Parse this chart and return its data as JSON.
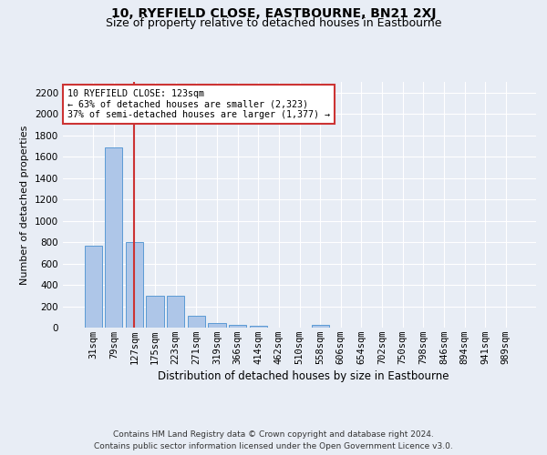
{
  "title": "10, RYEFIELD CLOSE, EASTBOURNE, BN21 2XJ",
  "subtitle": "Size of property relative to detached houses in Eastbourne",
  "xlabel": "Distribution of detached houses by size in Eastbourne",
  "ylabel": "Number of detached properties",
  "categories": [
    "31sqm",
    "79sqm",
    "127sqm",
    "175sqm",
    "223sqm",
    "271sqm",
    "319sqm",
    "366sqm",
    "414sqm",
    "462sqm",
    "510sqm",
    "558sqm",
    "606sqm",
    "654sqm",
    "702sqm",
    "750sqm",
    "798sqm",
    "846sqm",
    "894sqm",
    "941sqm",
    "989sqm"
  ],
  "values": [
    770,
    1690,
    800,
    300,
    300,
    110,
    40,
    28,
    20,
    0,
    0,
    25,
    0,
    0,
    0,
    0,
    0,
    0,
    0,
    0,
    0
  ],
  "bar_color": "#aec6e8",
  "bar_edge_color": "#5b9bd5",
  "vline_index": 2,
  "vline_color": "#cc3333",
  "annotation_text": "10 RYEFIELD CLOSE: 123sqm\n← 63% of detached houses are smaller (2,323)\n37% of semi-detached houses are larger (1,377) →",
  "annotation_box_color": "#ffffff",
  "annotation_box_edge": "#cc3333",
  "ylim": [
    0,
    2300
  ],
  "yticks": [
    0,
    200,
    400,
    600,
    800,
    1000,
    1200,
    1400,
    1600,
    1800,
    2000,
    2200
  ],
  "bg_color": "#e8edf5",
  "plot_bg_color": "#e8edf5",
  "footer": "Contains HM Land Registry data © Crown copyright and database right 2024.\nContains public sector information licensed under the Open Government Licence v3.0.",
  "title_fontsize": 10,
  "subtitle_fontsize": 9,
  "ylabel_fontsize": 8,
  "xlabel_fontsize": 8.5,
  "tick_fontsize": 7.5,
  "footer_fontsize": 6.5
}
